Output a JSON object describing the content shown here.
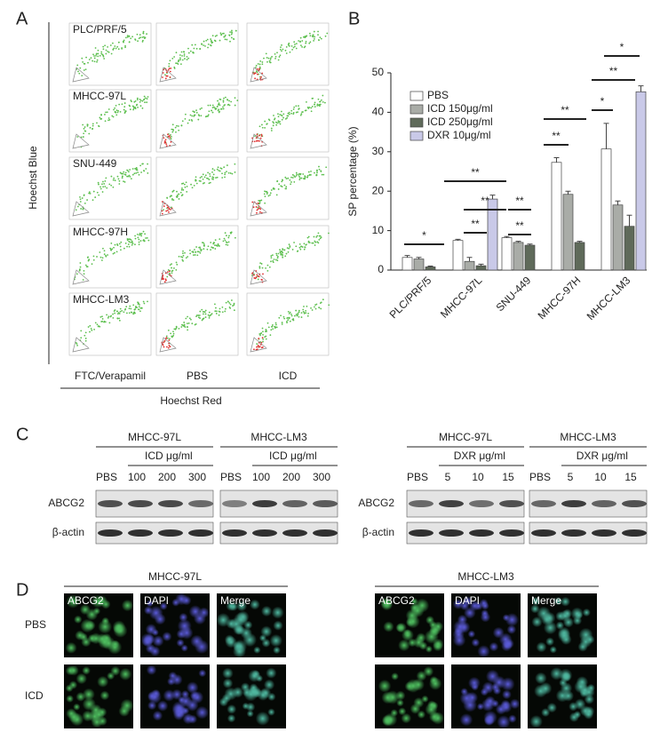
{
  "panel_a": {
    "label": "A",
    "y_label": "Hoechst Blue",
    "x_label": "Hoechst Red",
    "columns": [
      "FTC/Verapamil",
      "PBS",
      "ICD"
    ],
    "rows": [
      "PLC/PRF/5",
      "MHCC-97L",
      "SNU-449",
      "MHCC-97H",
      "MHCC-LM3"
    ]
  },
  "chart_data": {
    "type": "bar",
    "panel_label": "B",
    "y_label": "SP percentage (%)",
    "categories": [
      "PLC/PRF/5",
      "MHCC-97L",
      "SNU-449",
      "MHCC-97H",
      "MHCC-LM3"
    ],
    "series": [
      {
        "name": "PBS",
        "color": "#ffffff",
        "values": [
          3.2,
          7.5,
          8.2,
          27.3,
          30.7
        ],
        "errors": [
          0.5,
          0.3,
          0.3,
          1.2,
          6.5
        ]
      },
      {
        "name": "ICD 150μg/ml",
        "color": "#a9aca7",
        "values": [
          2.8,
          2.2,
          7.0,
          19.2,
          16.5
        ],
        "errors": [
          0.4,
          1.0,
          0.3,
          0.8,
          1.0
        ]
      },
      {
        "name": "ICD 250μg/ml",
        "color": "#5f6a5a",
        "values": [
          0.8,
          1.1,
          6.3,
          7.0,
          11.1
        ],
        "errors": [
          0.2,
          0.4,
          0.3,
          0.3,
          2.8
        ]
      },
      {
        "name": "DXR 10μg/ml",
        "color": "#c9c9e8",
        "values": [
          null,
          18.0,
          null,
          null,
          45.2
        ],
        "errors": [
          null,
          1.0,
          null,
          null,
          1.5
        ]
      }
    ],
    "ylim": [
      0,
      50
    ],
    "yticks": [
      0,
      10,
      20,
      30,
      40,
      50
    ],
    "legend": "top-left",
    "annotations": [
      "*",
      "**",
      "**",
      "**",
      "**",
      "**",
      "**",
      "**",
      "*",
      "**",
      "*"
    ]
  },
  "panel_c": {
    "label": "C",
    "row_labels": [
      "ABCG2",
      "β-actin"
    ],
    "blots": [
      {
        "cell_line": "MHCC-97L",
        "treatment": "ICD μg/ml",
        "lanes": [
          "PBS",
          "100",
          "200",
          "300"
        ]
      },
      {
        "cell_line": "MHCC-LM3",
        "treatment": "ICD μg/ml",
        "lanes": [
          "PBS",
          "100",
          "200",
          "300"
        ]
      },
      {
        "cell_line": "MHCC-97L",
        "treatment": "DXR μg/ml",
        "lanes": [
          "PBS",
          "5",
          "10",
          "15"
        ]
      },
      {
        "cell_line": "MHCC-LM3",
        "treatment": "DXR μg/ml",
        "lanes": [
          "PBS",
          "5",
          "10",
          "15"
        ]
      }
    ]
  },
  "panel_d": {
    "label": "D",
    "groups": [
      "MHCC-97L",
      "MHCC-LM3"
    ],
    "stains": [
      "ABCG2",
      "DAPI",
      "Merge"
    ],
    "rows": [
      "PBS",
      "ICD"
    ]
  }
}
